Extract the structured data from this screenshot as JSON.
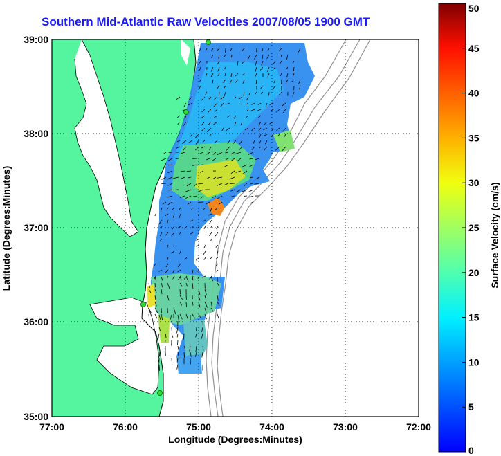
{
  "title": "Southern Mid-Atlantic Raw Velocities 2007/08/05 1900 GMT",
  "x_axis": {
    "label": "Longitude (Degrees:Minutes)",
    "ticks": [
      "77:00",
      "76:00",
      "75:00",
      "74:00",
      "73:00",
      "72:00"
    ]
  },
  "y_axis": {
    "label": "Latitude (Degrees:Minutes)",
    "ticks": [
      "39:00",
      "38:00",
      "37:00",
      "36:00",
      "35:00"
    ]
  },
  "colorbar": {
    "label": "Surface Velocity (cm/s)",
    "ticks": [
      "50",
      "45",
      "40",
      "35",
      "30",
      "25",
      "20",
      "15",
      "10",
      "5",
      "0"
    ],
    "min": 0,
    "max": 50,
    "colormap": "jet"
  },
  "colors": {
    "land": "#55f5a0",
    "water": "#ffffff",
    "title": "#1a1aff",
    "grid": "#000000",
    "bathymetry": "#909090",
    "station": "#33dd33"
  },
  "chart_data": {
    "type": "heatmap",
    "title": "Southern Mid-Atlantic Raw Velocities 2007/08/05 1900 GMT",
    "xlabel": "Longitude (Degrees:Minutes)",
    "ylabel": "Latitude (Degrees:Minutes)",
    "xlim": [
      "77:00 W",
      "72:00 W"
    ],
    "ylim": [
      "35:00 N",
      "39:00 N"
    ],
    "colorbar_label": "Surface Velocity (cm/s)",
    "colorbar_range": [
      0,
      50
    ],
    "grid": true,
    "hotspots": [
      {
        "lat": "37:11",
        "lon": "74:47",
        "speed_cm_s": 35
      },
      {
        "lat": "36:20",
        "lon": "75:35",
        "speed_cm_s": 24
      },
      {
        "lat": "37:55",
        "lon": "74:10",
        "speed_cm_s": 22
      }
    ]
  }
}
